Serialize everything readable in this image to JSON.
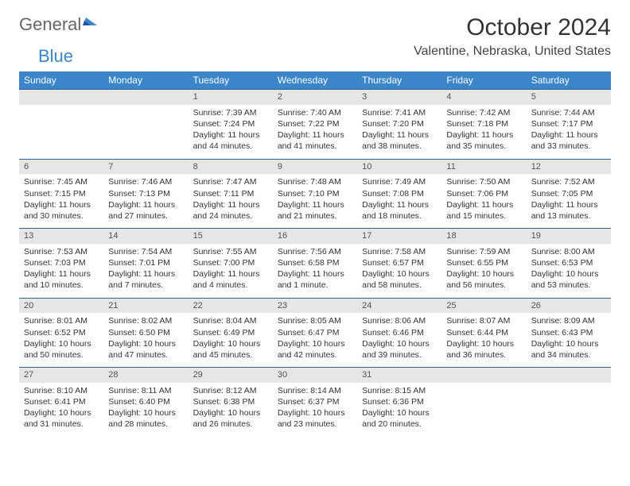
{
  "brand": {
    "part1": "General",
    "part2": "Blue"
  },
  "title": "October 2024",
  "location": "Valentine, Nebraska, United States",
  "colors": {
    "header_bg": "#3a86c8",
    "header_text": "#ffffff",
    "daynum_bg": "#e6e6e6",
    "rule": "#2f5f8a",
    "logo_accent": "#3a86c8",
    "text": "#333333",
    "page_bg": "#ffffff"
  },
  "dow": [
    "Sunday",
    "Monday",
    "Tuesday",
    "Wednesday",
    "Thursday",
    "Friday",
    "Saturday"
  ],
  "weeks": [
    [
      null,
      null,
      {
        "n": "1",
        "sr": "Sunrise: 7:39 AM",
        "ss": "Sunset: 7:24 PM",
        "dl": "Daylight: 11 hours and 44 minutes."
      },
      {
        "n": "2",
        "sr": "Sunrise: 7:40 AM",
        "ss": "Sunset: 7:22 PM",
        "dl": "Daylight: 11 hours and 41 minutes."
      },
      {
        "n": "3",
        "sr": "Sunrise: 7:41 AM",
        "ss": "Sunset: 7:20 PM",
        "dl": "Daylight: 11 hours and 38 minutes."
      },
      {
        "n": "4",
        "sr": "Sunrise: 7:42 AM",
        "ss": "Sunset: 7:18 PM",
        "dl": "Daylight: 11 hours and 35 minutes."
      },
      {
        "n": "5",
        "sr": "Sunrise: 7:44 AM",
        "ss": "Sunset: 7:17 PM",
        "dl": "Daylight: 11 hours and 33 minutes."
      }
    ],
    [
      {
        "n": "6",
        "sr": "Sunrise: 7:45 AM",
        "ss": "Sunset: 7:15 PM",
        "dl": "Daylight: 11 hours and 30 minutes."
      },
      {
        "n": "7",
        "sr": "Sunrise: 7:46 AM",
        "ss": "Sunset: 7:13 PM",
        "dl": "Daylight: 11 hours and 27 minutes."
      },
      {
        "n": "8",
        "sr": "Sunrise: 7:47 AM",
        "ss": "Sunset: 7:11 PM",
        "dl": "Daylight: 11 hours and 24 minutes."
      },
      {
        "n": "9",
        "sr": "Sunrise: 7:48 AM",
        "ss": "Sunset: 7:10 PM",
        "dl": "Daylight: 11 hours and 21 minutes."
      },
      {
        "n": "10",
        "sr": "Sunrise: 7:49 AM",
        "ss": "Sunset: 7:08 PM",
        "dl": "Daylight: 11 hours and 18 minutes."
      },
      {
        "n": "11",
        "sr": "Sunrise: 7:50 AM",
        "ss": "Sunset: 7:06 PM",
        "dl": "Daylight: 11 hours and 15 minutes."
      },
      {
        "n": "12",
        "sr": "Sunrise: 7:52 AM",
        "ss": "Sunset: 7:05 PM",
        "dl": "Daylight: 11 hours and 13 minutes."
      }
    ],
    [
      {
        "n": "13",
        "sr": "Sunrise: 7:53 AM",
        "ss": "Sunset: 7:03 PM",
        "dl": "Daylight: 11 hours and 10 minutes."
      },
      {
        "n": "14",
        "sr": "Sunrise: 7:54 AM",
        "ss": "Sunset: 7:01 PM",
        "dl": "Daylight: 11 hours and 7 minutes."
      },
      {
        "n": "15",
        "sr": "Sunrise: 7:55 AM",
        "ss": "Sunset: 7:00 PM",
        "dl": "Daylight: 11 hours and 4 minutes."
      },
      {
        "n": "16",
        "sr": "Sunrise: 7:56 AM",
        "ss": "Sunset: 6:58 PM",
        "dl": "Daylight: 11 hours and 1 minute."
      },
      {
        "n": "17",
        "sr": "Sunrise: 7:58 AM",
        "ss": "Sunset: 6:57 PM",
        "dl": "Daylight: 10 hours and 58 minutes."
      },
      {
        "n": "18",
        "sr": "Sunrise: 7:59 AM",
        "ss": "Sunset: 6:55 PM",
        "dl": "Daylight: 10 hours and 56 minutes."
      },
      {
        "n": "19",
        "sr": "Sunrise: 8:00 AM",
        "ss": "Sunset: 6:53 PM",
        "dl": "Daylight: 10 hours and 53 minutes."
      }
    ],
    [
      {
        "n": "20",
        "sr": "Sunrise: 8:01 AM",
        "ss": "Sunset: 6:52 PM",
        "dl": "Daylight: 10 hours and 50 minutes."
      },
      {
        "n": "21",
        "sr": "Sunrise: 8:02 AM",
        "ss": "Sunset: 6:50 PM",
        "dl": "Daylight: 10 hours and 47 minutes."
      },
      {
        "n": "22",
        "sr": "Sunrise: 8:04 AM",
        "ss": "Sunset: 6:49 PM",
        "dl": "Daylight: 10 hours and 45 minutes."
      },
      {
        "n": "23",
        "sr": "Sunrise: 8:05 AM",
        "ss": "Sunset: 6:47 PM",
        "dl": "Daylight: 10 hours and 42 minutes."
      },
      {
        "n": "24",
        "sr": "Sunrise: 8:06 AM",
        "ss": "Sunset: 6:46 PM",
        "dl": "Daylight: 10 hours and 39 minutes."
      },
      {
        "n": "25",
        "sr": "Sunrise: 8:07 AM",
        "ss": "Sunset: 6:44 PM",
        "dl": "Daylight: 10 hours and 36 minutes."
      },
      {
        "n": "26",
        "sr": "Sunrise: 8:09 AM",
        "ss": "Sunset: 6:43 PM",
        "dl": "Daylight: 10 hours and 34 minutes."
      }
    ],
    [
      {
        "n": "27",
        "sr": "Sunrise: 8:10 AM",
        "ss": "Sunset: 6:41 PM",
        "dl": "Daylight: 10 hours and 31 minutes."
      },
      {
        "n": "28",
        "sr": "Sunrise: 8:11 AM",
        "ss": "Sunset: 6:40 PM",
        "dl": "Daylight: 10 hours and 28 minutes."
      },
      {
        "n": "29",
        "sr": "Sunrise: 8:12 AM",
        "ss": "Sunset: 6:38 PM",
        "dl": "Daylight: 10 hours and 26 minutes."
      },
      {
        "n": "30",
        "sr": "Sunrise: 8:14 AM",
        "ss": "Sunset: 6:37 PM",
        "dl": "Daylight: 10 hours and 23 minutes."
      },
      {
        "n": "31",
        "sr": "Sunrise: 8:15 AM",
        "ss": "Sunset: 6:36 PM",
        "dl": "Daylight: 10 hours and 20 minutes."
      },
      null,
      null
    ]
  ]
}
